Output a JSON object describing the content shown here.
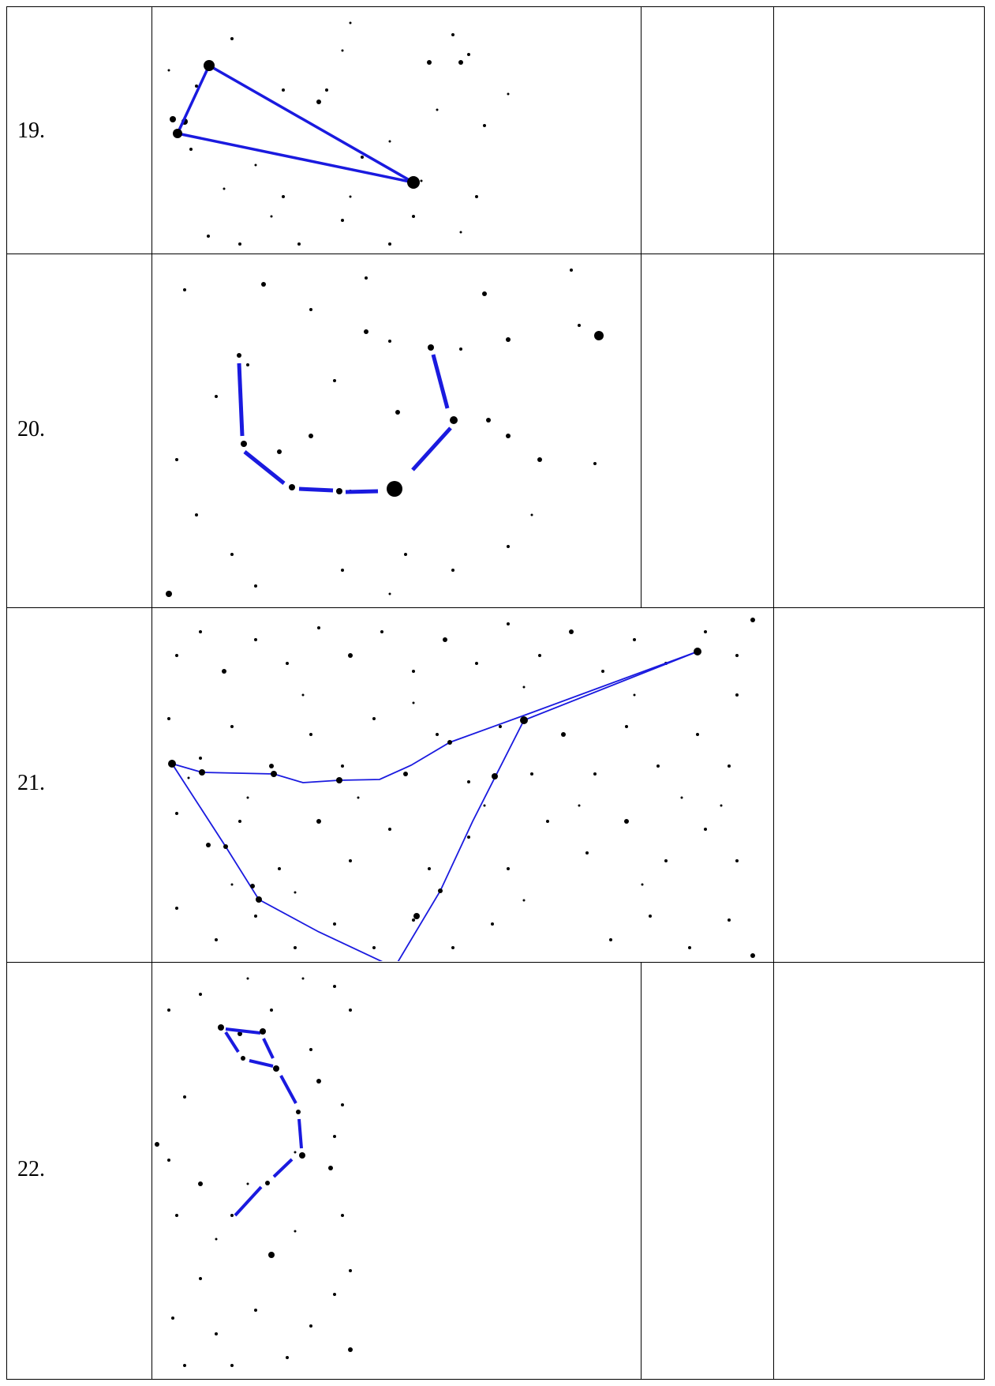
{
  "rows": [
    {
      "number": "19."
    },
    {
      "number": "20."
    },
    {
      "number": "21."
    },
    {
      "number": "22."
    }
  ],
  "colors": {
    "constellation_line": "#1a1adf",
    "star": "#000000",
    "grid": "#000000"
  }
}
